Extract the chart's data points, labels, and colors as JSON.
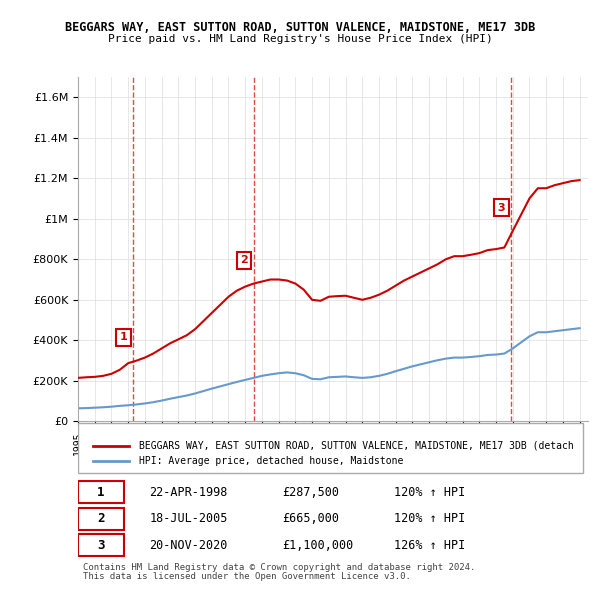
{
  "title1": "BEGGARS WAY, EAST SUTTON ROAD, SUTTON VALENCE, MAIDSTONE, ME17 3DB",
  "title2": "Price paid vs. HM Land Registry's House Price Index (HPI)",
  "legend_line1": "BEGGARS WAY, EAST SUTTON ROAD, SUTTON VALENCE, MAIDSTONE, ME17 3DB (detach",
  "legend_line2": "HPI: Average price, detached house, Maidstone",
  "transactions": [
    {
      "num": 1,
      "date": "22-APR-1998",
      "price": "£287,500",
      "hpi": "120% ↑ HPI",
      "x_year": 1998.3
    },
    {
      "num": 2,
      "date": "18-JUL-2005",
      "price": "£665,000",
      "hpi": "120% ↑ HPI",
      "x_year": 2005.5
    },
    {
      "num": 3,
      "date": "20-NOV-2020",
      "price": "£1,100,000",
      "hpi": "126% ↑ HPI",
      "x_year": 2020.9
    }
  ],
  "footer1": "Contains HM Land Registry data © Crown copyright and database right 2024.",
  "footer2": "This data is licensed under the Open Government Licence v3.0.",
  "red_color": "#cc0000",
  "blue_color": "#6699cc",
  "background_color": "#ffffff",
  "grid_color": "#dddddd",
  "ylim": [
    0,
    1700000
  ],
  "xlim_start": 1995,
  "xlim_end": 2025.5,
  "hpi_data": {
    "years": [
      1995,
      1995.5,
      1996,
      1996.5,
      1997,
      1997.5,
      1998,
      1998.5,
      1999,
      1999.5,
      2000,
      2000.5,
      2001,
      2001.5,
      2002,
      2002.5,
      2003,
      2003.5,
      2004,
      2004.5,
      2005,
      2005.5,
      2006,
      2006.5,
      2007,
      2007.5,
      2008,
      2008.5,
      2009,
      2009.5,
      2010,
      2010.5,
      2011,
      2011.5,
      2012,
      2012.5,
      2013,
      2013.5,
      2014,
      2014.5,
      2015,
      2015.5,
      2016,
      2016.5,
      2017,
      2017.5,
      2018,
      2018.5,
      2019,
      2019.5,
      2020,
      2020.5,
      2021,
      2021.5,
      2022,
      2022.5,
      2023,
      2023.5,
      2024,
      2024.5,
      2025
    ],
    "values": [
      65000,
      66000,
      68000,
      70000,
      73000,
      77000,
      80000,
      84000,
      89000,
      95000,
      103000,
      112000,
      120000,
      128000,
      138000,
      150000,
      162000,
      173000,
      184000,
      195000,
      205000,
      215000,
      225000,
      232000,
      238000,
      242000,
      238000,
      228000,
      210000,
      208000,
      218000,
      220000,
      222000,
      218000,
      215000,
      218000,
      225000,
      235000,
      248000,
      260000,
      272000,
      282000,
      292000,
      302000,
      310000,
      315000,
      315000,
      318000,
      322000,
      328000,
      330000,
      335000,
      360000,
      390000,
      420000,
      440000,
      440000,
      445000,
      450000,
      455000,
      460000
    ]
  },
  "red_data": {
    "years": [
      1995,
      1995.5,
      1996,
      1996.5,
      1997,
      1997.5,
      1998,
      1998.5,
      1999,
      1999.5,
      2000,
      2000.5,
      2001,
      2001.5,
      2002,
      2002.5,
      2003,
      2003.5,
      2004,
      2004.5,
      2005,
      2005.5,
      2006,
      2006.5,
      2007,
      2007.5,
      2008,
      2008.5,
      2009,
      2009.5,
      2010,
      2010.5,
      2011,
      2011.5,
      2012,
      2012.5,
      2013,
      2013.5,
      2014,
      2014.5,
      2015,
      2015.5,
      2016,
      2016.5,
      2017,
      2017.5,
      2018,
      2018.5,
      2019,
      2019.5,
      2020,
      2020.5,
      2021,
      2021.5,
      2022,
      2022.5,
      2023,
      2023.5,
      2024,
      2024.5,
      2025
    ],
    "values": [
      215000,
      218000,
      220000,
      225000,
      235000,
      255000,
      287500,
      300000,
      315000,
      335000,
      360000,
      385000,
      405000,
      425000,
      455000,
      495000,
      535000,
      575000,
      615000,
      645000,
      665000,
      680000,
      690000,
      700000,
      700000,
      695000,
      680000,
      650000,
      600000,
      595000,
      615000,
      618000,
      620000,
      610000,
      600000,
      610000,
      625000,
      645000,
      670000,
      695000,
      715000,
      735000,
      755000,
      775000,
      800000,
      815000,
      815000,
      822000,
      830000,
      845000,
      850000,
      858000,
      940000,
      1020000,
      1100000,
      1150000,
      1150000,
      1165000,
      1175000,
      1185000,
      1190000
    ]
  }
}
